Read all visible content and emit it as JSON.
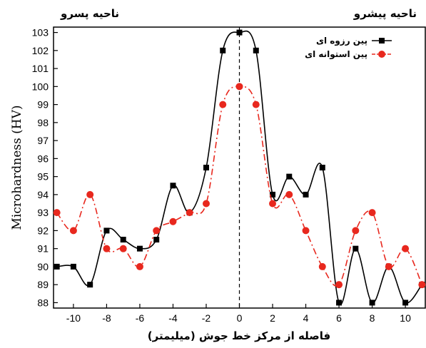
{
  "chart_data": {
    "type": "line",
    "ylabel": "Microhardness (HV)",
    "xlabel": "فاصله از مرکز خط جوش (میلیمتر)",
    "xlim": [
      -11.2,
      11.2
    ],
    "ylim": [
      87.7,
      103.3
    ],
    "xticks": [
      -10,
      -8,
      -6,
      -4,
      -2,
      0,
      2,
      4,
      6,
      8,
      10
    ],
    "yticks": [
      88,
      89,
      90,
      91,
      92,
      93,
      94,
      95,
      96,
      97,
      98,
      99,
      100,
      101,
      102,
      103
    ],
    "center_line_x": 0,
    "grid": false,
    "legend_position": "top-right",
    "annotations": {
      "retreating_side": "ناحیه پسرو",
      "advancing_side": "ناحیه پیشرو"
    },
    "series": [
      {
        "name": "پین رزوه ای",
        "color": "#000000",
        "marker": "square",
        "line_style": "solid",
        "x": [
          -11,
          -10,
          -9,
          -8,
          -7,
          -6,
          -5,
          -4,
          -3,
          -2,
          -1,
          0,
          1,
          2,
          3,
          4,
          5,
          6,
          7,
          8,
          9,
          10,
          11
        ],
        "y": [
          90,
          90,
          89,
          92,
          91.5,
          91,
          91.5,
          94.5,
          93,
          95.5,
          102,
          103,
          102,
          94,
          95,
          94,
          95.5,
          88,
          91,
          88,
          90,
          88,
          89
        ]
      },
      {
        "name": "پین استوانه ای",
        "color": "#e8281e",
        "marker": "circle",
        "line_style": "dash-dot",
        "x": [
          -11,
          -10,
          -9,
          -8,
          -7,
          -6,
          -5,
          -4,
          -3,
          -2,
          -1,
          0,
          1,
          2,
          3,
          4,
          5,
          6,
          7,
          8,
          9,
          10,
          11
        ],
        "y": [
          93,
          92,
          94,
          91,
          91,
          90,
          92,
          92.5,
          93,
          93.5,
          99,
          100,
          99,
          93.5,
          94,
          92,
          90,
          89,
          92,
          93,
          90,
          91,
          89
        ]
      }
    ]
  }
}
